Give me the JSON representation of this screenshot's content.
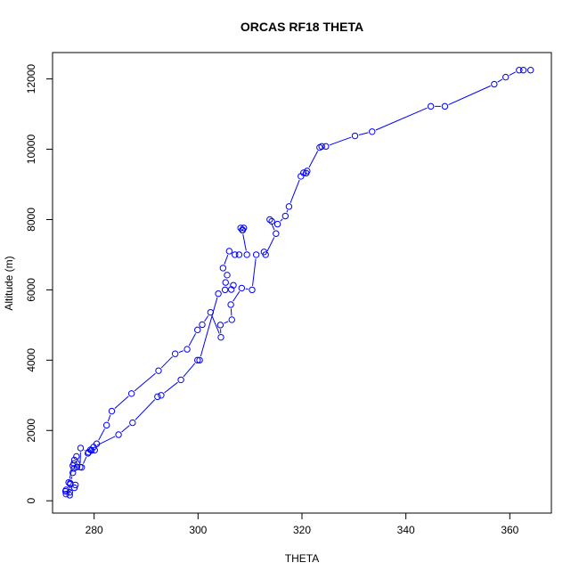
{
  "chart_data": {
    "type": "line",
    "title": "ORCAS RF18 THETA",
    "xlabel": "THETA",
    "ylabel": "Altitude (m)",
    "xlim": [
      272,
      368
    ],
    "ylim": [
      -350,
      12750
    ],
    "xticks": [
      280,
      300,
      320,
      340,
      360
    ],
    "yticks": [
      0,
      2000,
      4000,
      6000,
      8000,
      10000,
      12000
    ],
    "grid": false,
    "series_color": "#0000ff",
    "marker": "open-circle",
    "series": [
      {
        "points": [
          [
            364,
            12250
          ],
          [
            362.6,
            12250
          ],
          [
            361.8,
            12250
          ],
          [
            359.2,
            12050
          ],
          [
            357,
            11850
          ],
          [
            347.5,
            11220
          ],
          [
            344.8,
            11220
          ],
          [
            333.5,
            10500
          ],
          [
            330.2,
            10380
          ],
          [
            324.6,
            10080
          ],
          [
            323.8,
            10080
          ],
          [
            323.4,
            10050
          ],
          [
            321,
            9380
          ],
          [
            320.3,
            9330
          ],
          [
            320.8,
            9320
          ],
          [
            319.8,
            9230
          ],
          [
            317.5,
            8370
          ],
          [
            316.8,
            8100
          ],
          [
            315.3,
            7870
          ],
          [
            314.2,
            7950
          ],
          [
            313.8,
            8000
          ],
          [
            315,
            7600
          ],
          [
            313,
            7000
          ],
          [
            312.7,
            7080
          ],
          [
            311.2,
            7000
          ],
          [
            310.4,
            6000
          ],
          [
            308.4,
            6050
          ],
          [
            306.3,
            5580
          ],
          [
            306.5,
            5150
          ],
          [
            304.3,
            5000
          ],
          [
            304.4,
            4650
          ],
          [
            302.4,
            5360
          ],
          [
            300.8,
            5010
          ],
          [
            299.9,
            4860
          ],
          [
            297.9,
            4310
          ],
          [
            295.6,
            4180
          ],
          [
            292.4,
            3700
          ],
          [
            287.2,
            3050
          ],
          [
            283.4,
            2550
          ],
          [
            282.4,
            2150
          ],
          [
            280.5,
            1620
          ],
          [
            280.1,
            1440
          ],
          [
            279.3,
            1450
          ],
          [
            278.9,
            1380
          ],
          [
            277.4,
            1500
          ],
          [
            277.3,
            960
          ],
          [
            276.7,
            960
          ],
          [
            276.1,
            920
          ],
          [
            275.9,
            800
          ],
          [
            275.4,
            500
          ],
          [
            275.3,
            240
          ],
          [
            275.3,
            160
          ],
          [
            274.6,
            310
          ],
          [
            274.5,
            270
          ],
          [
            274.6,
            190
          ],
          [
            276.2,
            370
          ],
          [
            276.4,
            450
          ],
          [
            275.4,
            470
          ],
          [
            275.1,
            520
          ],
          [
            275.9,
            1000
          ],
          [
            276.1,
            1060
          ],
          [
            276.2,
            1160
          ],
          [
            276.6,
            1260
          ],
          [
            277.6,
            950
          ],
          [
            278.8,
            1350
          ],
          [
            279.5,
            1430
          ],
          [
            279.9,
            1530
          ],
          [
            284.7,
            1880
          ],
          [
            287.4,
            2220
          ],
          [
            292.2,
            2960
          ],
          [
            292.9,
            3000
          ],
          [
            296.7,
            3440
          ],
          [
            299.9,
            4000
          ],
          [
            300.3,
            4000
          ],
          [
            303.9,
            5890
          ],
          [
            305.2,
            6000
          ],
          [
            306.4,
            6010
          ],
          [
            306.8,
            6130
          ],
          [
            305.3,
            6210
          ],
          [
            305.6,
            6420
          ],
          [
            304.8,
            6620
          ],
          [
            306,
            7100
          ],
          [
            307.1,
            7000
          ],
          [
            307.9,
            7000
          ],
          [
            309.4,
            7000
          ],
          [
            308.5,
            7700
          ],
          [
            308.2,
            7760
          ],
          [
            308.8,
            7760
          ],
          [
            308.6,
            7700
          ]
        ]
      }
    ]
  }
}
